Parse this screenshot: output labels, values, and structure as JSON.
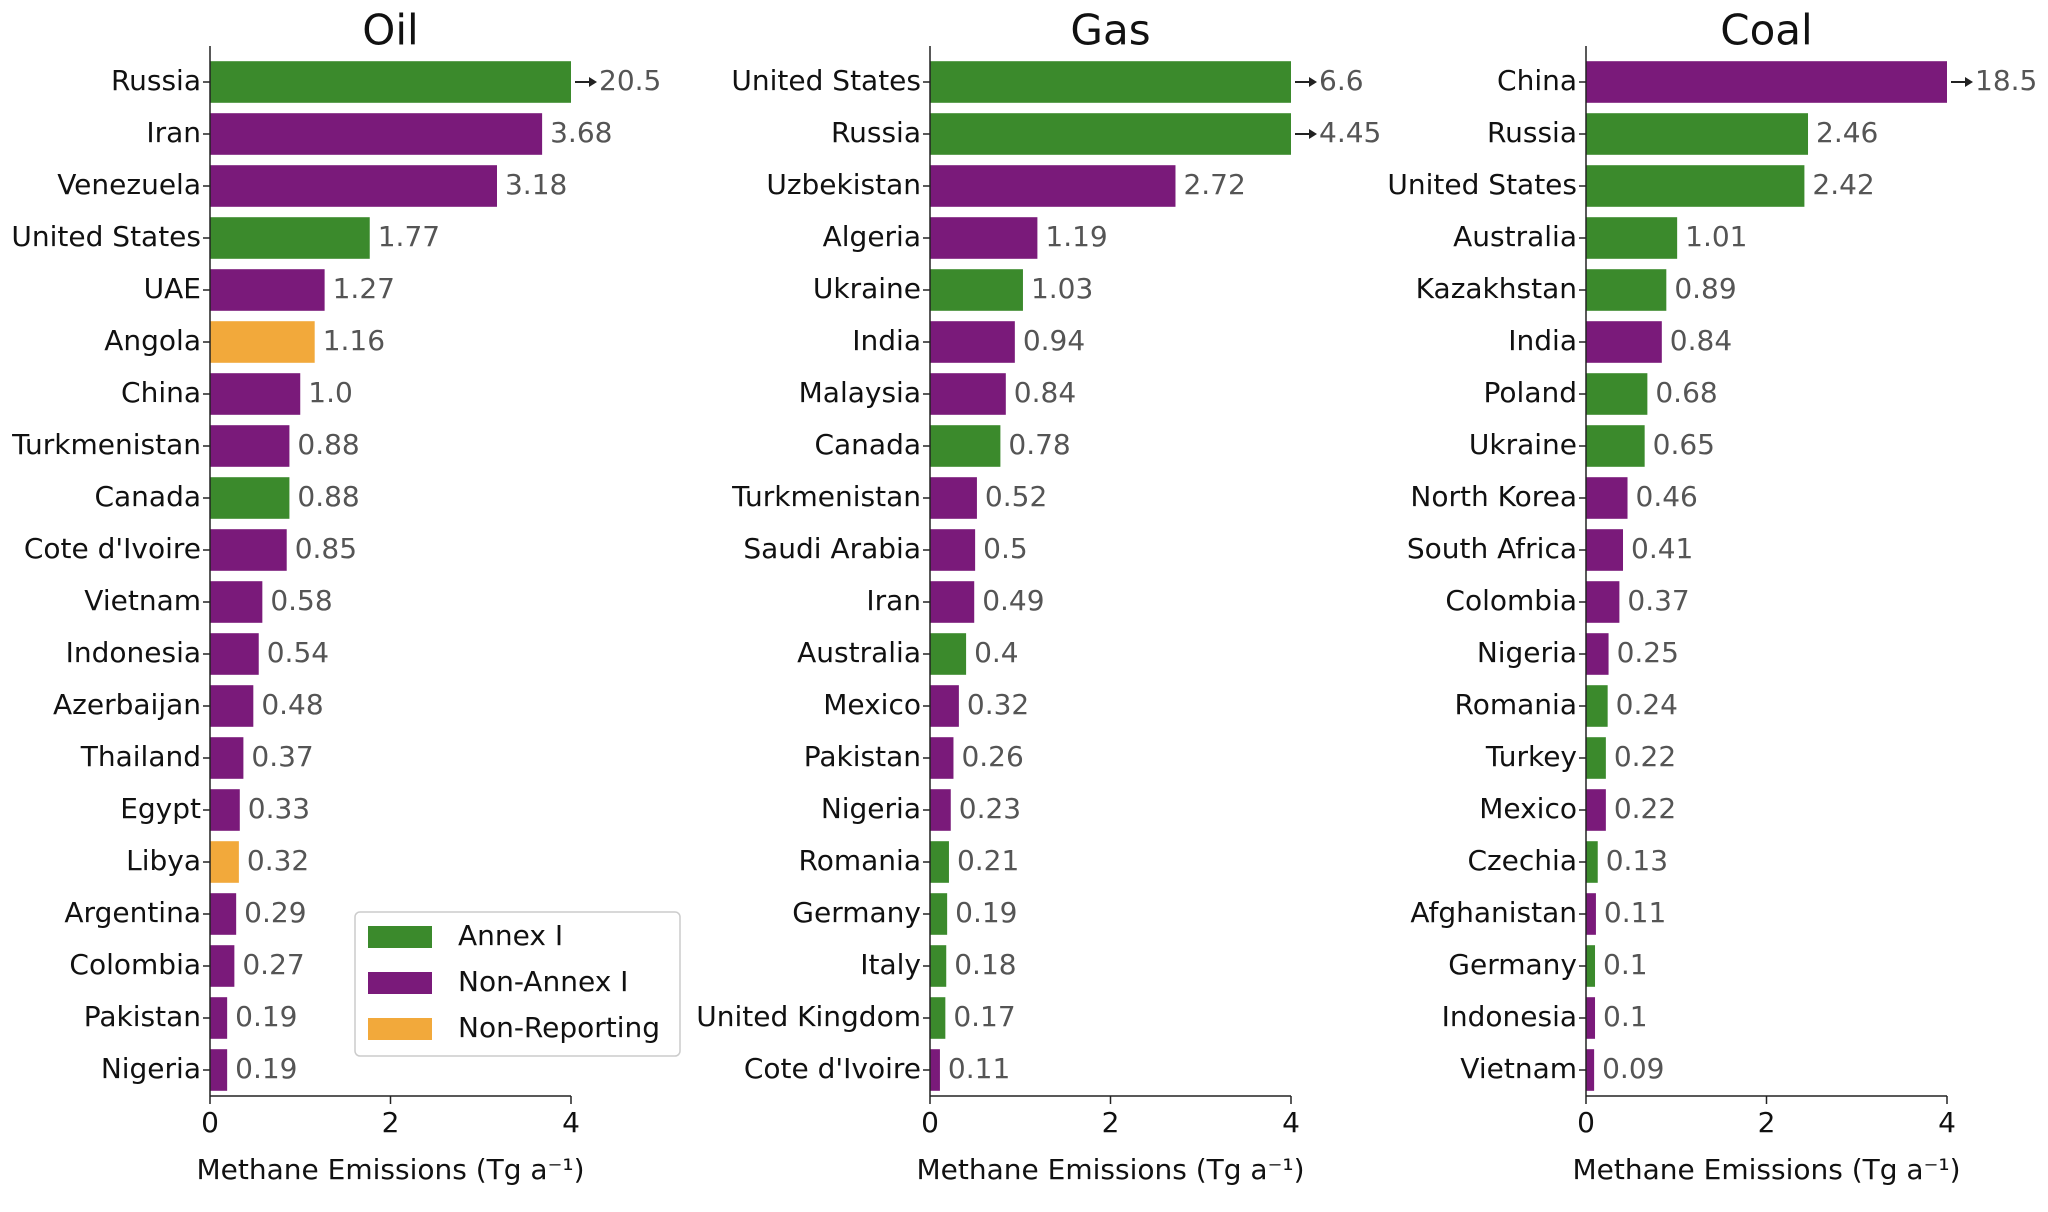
{
  "chart_data": [
    {
      "type": "bar",
      "orientation": "horizontal",
      "title": "Oil",
      "xlabel": "Methane Emissions (Tg a⁻¹)",
      "categories": [
        "Russia",
        "Iran",
        "Venezuela",
        "United States",
        "UAE",
        "Angola",
        "China",
        "Turkmenistan",
        "Canada",
        "Cote d'Ivoire",
        "Vietnam",
        "Indonesia",
        "Azerbaijan",
        "Thailand",
        "Egypt",
        "Libya",
        "Argentina",
        "Colombia",
        "Pakistan",
        "Nigeria"
      ],
      "values": [
        20.5,
        3.68,
        3.18,
        1.77,
        1.27,
        1.16,
        1.0,
        0.88,
        0.88,
        0.85,
        0.58,
        0.54,
        0.48,
        0.37,
        0.33,
        0.32,
        0.29,
        0.27,
        0.19,
        0.19
      ],
      "value_labels": [
        "20.5",
        "3.68",
        "3.18",
        "1.77",
        "1.27",
        "1.16",
        "1.0",
        "0.88",
        "0.88",
        "0.85",
        "0.58",
        "0.54",
        "0.48",
        "0.37",
        "0.33",
        "0.32",
        "0.29",
        "0.27",
        "0.19",
        "0.19"
      ],
      "colors": [
        "#3b8a2c",
        "#7a1a7a",
        "#7a1a7a",
        "#3b8a2c",
        "#7a1a7a",
        "#f2a93b",
        "#7a1a7a",
        "#7a1a7a",
        "#3b8a2c",
        "#7a1a7a",
        "#7a1a7a",
        "#7a1a7a",
        "#7a1a7a",
        "#7a1a7a",
        "#7a1a7a",
        "#f2a93b",
        "#7a1a7a",
        "#7a1a7a",
        "#7a1a7a",
        "#7a1a7a"
      ],
      "xlim": [
        0,
        4
      ],
      "xticks": [
        0,
        2,
        4
      ],
      "legend": [
        {
          "name": "Annex I",
          "color": "#3b8a2c"
        },
        {
          "name": "Non-Annex I",
          "color": "#7a1a7a"
        },
        {
          "name": "Non-Reporting",
          "color": "#f2a93b"
        }
      ]
    },
    {
      "type": "bar",
      "orientation": "horizontal",
      "title": "Gas",
      "xlabel": "Methane Emissions (Tg a⁻¹)",
      "categories": [
        "United States",
        "Russia",
        "Uzbekistan",
        "Algeria",
        "Ukraine",
        "India",
        "Malaysia",
        "Canada",
        "Turkmenistan",
        "Saudi Arabia",
        "Iran",
        "Australia",
        "Mexico",
        "Pakistan",
        "Nigeria",
        "Romania",
        "Germany",
        "Italy",
        "United Kingdom",
        "Cote d'Ivoire"
      ],
      "values": [
        6.6,
        4.45,
        2.72,
        1.19,
        1.03,
        0.94,
        0.84,
        0.78,
        0.52,
        0.5,
        0.49,
        0.4,
        0.32,
        0.26,
        0.23,
        0.21,
        0.19,
        0.18,
        0.17,
        0.11
      ],
      "value_labels": [
        "6.6",
        "4.45",
        "2.72",
        "1.19",
        "1.03",
        "0.94",
        "0.84",
        "0.78",
        "0.52",
        "0.5",
        "0.49",
        "0.4",
        "0.32",
        "0.26",
        "0.23",
        "0.21",
        "0.19",
        "0.18",
        "0.17",
        "0.11"
      ],
      "colors": [
        "#3b8a2c",
        "#3b8a2c",
        "#7a1a7a",
        "#7a1a7a",
        "#3b8a2c",
        "#7a1a7a",
        "#7a1a7a",
        "#3b8a2c",
        "#7a1a7a",
        "#7a1a7a",
        "#7a1a7a",
        "#3b8a2c",
        "#7a1a7a",
        "#7a1a7a",
        "#7a1a7a",
        "#3b8a2c",
        "#3b8a2c",
        "#3b8a2c",
        "#3b8a2c",
        "#7a1a7a"
      ],
      "xlim": [
        0,
        4
      ],
      "xticks": [
        0,
        2,
        4
      ]
    },
    {
      "type": "bar",
      "orientation": "horizontal",
      "title": "Coal",
      "xlabel": "Methane Emissions (Tg a⁻¹)",
      "categories": [
        "China",
        "Russia",
        "United States",
        "Australia",
        "Kazakhstan",
        "India",
        "Poland",
        "Ukraine",
        "North Korea",
        "South Africa",
        "Colombia",
        "Nigeria",
        "Romania",
        "Turkey",
        "Mexico",
        "Czechia",
        "Afghanistan",
        "Germany",
        "Indonesia",
        "Vietnam"
      ],
      "values": [
        18.5,
        2.46,
        2.42,
        1.01,
        0.89,
        0.84,
        0.68,
        0.65,
        0.46,
        0.41,
        0.37,
        0.25,
        0.24,
        0.22,
        0.22,
        0.13,
        0.11,
        0.1,
        0.1,
        0.09
      ],
      "value_labels": [
        "18.5",
        "2.46",
        "2.42",
        "1.01",
        "0.89",
        "0.84",
        "0.68",
        "0.65",
        "0.46",
        "0.41",
        "0.37",
        "0.25",
        "0.24",
        "0.22",
        "0.22",
        "0.13",
        "0.11",
        "0.1",
        "0.1",
        "0.09"
      ],
      "colors": [
        "#7a1a7a",
        "#3b8a2c",
        "#3b8a2c",
        "#3b8a2c",
        "#3b8a2c",
        "#7a1a7a",
        "#3b8a2c",
        "#3b8a2c",
        "#7a1a7a",
        "#7a1a7a",
        "#7a1a7a",
        "#7a1a7a",
        "#3b8a2c",
        "#3b8a2c",
        "#7a1a7a",
        "#3b8a2c",
        "#7a1a7a",
        "#3b8a2c",
        "#7a1a7a",
        "#7a1a7a"
      ],
      "xlim": [
        0,
        4
      ],
      "xticks": [
        0,
        2,
        4
      ]
    }
  ]
}
